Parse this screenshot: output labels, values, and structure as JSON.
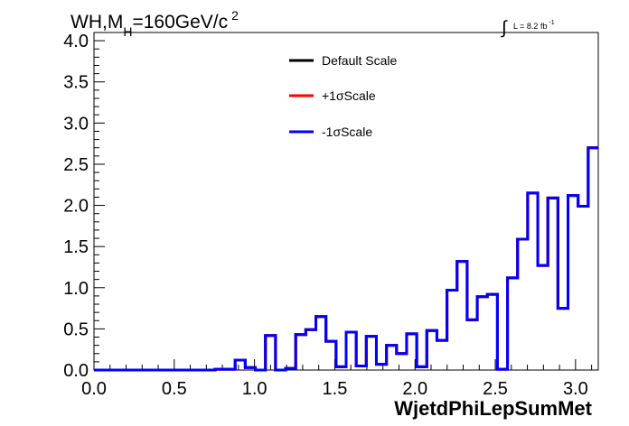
{
  "chart_data": {
    "type": "histogram",
    "title": "WH,M",
    "title_subscript": "H",
    "title_suffix": "=160GeV/c",
    "title_superscript": "2",
    "lumi_label": "L = 8.2 fb",
    "lumi_exponent": "-1",
    "xlabel": "WjetdPhiLepSumMet",
    "ylabel": "",
    "xlim": [
      0,
      3.1416
    ],
    "ylim": [
      0,
      4.1
    ],
    "x_ticks": [
      "0.0",
      "0.5",
      "1.0",
      "1.5",
      "2.0",
      "2.5",
      "3.0"
    ],
    "x_tick_values": [
      0,
      0.5,
      1.0,
      1.5,
      2.0,
      2.5,
      3.0
    ],
    "y_ticks": [
      "0.0",
      "0.5",
      "1.0",
      "1.5",
      "2.0",
      "2.5",
      "3.0",
      "3.5",
      "4.0"
    ],
    "y_tick_values": [
      0,
      0.5,
      1.0,
      1.5,
      2.0,
      2.5,
      3.0,
      3.5,
      4.0
    ],
    "grid": false,
    "legend_position": "top-center",
    "bin_edges": [
      0,
      0.0628,
      0.1257,
      0.1885,
      0.2513,
      0.3142,
      0.377,
      0.4398,
      0.5027,
      0.5655,
      0.6283,
      0.6912,
      0.754,
      0.8168,
      0.8796,
      0.9425,
      1.0053,
      1.0681,
      1.131,
      1.1938,
      1.2566,
      1.3195,
      1.3823,
      1.4451,
      1.508,
      1.5708,
      1.6336,
      1.6965,
      1.7593,
      1.8221,
      1.885,
      1.9478,
      2.0106,
      2.0735,
      2.1363,
      2.1991,
      2.2619,
      2.3248,
      2.3876,
      2.4504,
      2.5133,
      2.5761,
      2.6389,
      2.7018,
      2.7646,
      2.8274,
      2.8903,
      2.9531,
      3.0159,
      3.0788,
      3.1416
    ],
    "series": [
      {
        "name": "Default Scale",
        "color": "#000000",
        "values": [
          0,
          0,
          0,
          0,
          0,
          0,
          0,
          0,
          0,
          0,
          0,
          0,
          0.01,
          0.01,
          0.12,
          0.03,
          0,
          0.42,
          0,
          0.02,
          0.43,
          0.49,
          0.65,
          0.35,
          0.04,
          0.46,
          0.05,
          0.41,
          0.07,
          0.3,
          0.2,
          0.44,
          0.04,
          0.48,
          0.36,
          0.97,
          1.32,
          0.61,
          0.89,
          0.92,
          0.01,
          1.12,
          1.59,
          2.15,
          1.27,
          2.09,
          0.75,
          2.12,
          1.99,
          2.7
        ]
      },
      {
        "name": "+1σScale",
        "color": "#ff0000",
        "values": [
          0,
          0,
          0,
          0,
          0,
          0,
          0,
          0,
          0,
          0,
          0,
          0,
          0.01,
          0.01,
          0.12,
          0.03,
          0,
          0.42,
          0,
          0.02,
          0.43,
          0.49,
          0.65,
          0.35,
          0.04,
          0.46,
          0.05,
          0.41,
          0.07,
          0.3,
          0.2,
          0.44,
          0.04,
          0.48,
          0.36,
          0.97,
          1.32,
          0.61,
          0.89,
          0.92,
          0.01,
          1.12,
          1.59,
          2.15,
          1.27,
          2.09,
          0.75,
          2.12,
          1.99,
          2.7
        ]
      },
      {
        "name": "-1σScale",
        "color": "#0000ff",
        "values": [
          0,
          0,
          0,
          0,
          0,
          0,
          0,
          0,
          0,
          0,
          0,
          0,
          0.01,
          0.01,
          0.12,
          0.03,
          0,
          0.42,
          0,
          0.02,
          0.43,
          0.49,
          0.65,
          0.35,
          0.04,
          0.46,
          0.05,
          0.41,
          0.07,
          0.3,
          0.2,
          0.44,
          0.04,
          0.48,
          0.36,
          0.97,
          1.32,
          0.61,
          0.89,
          0.92,
          0.01,
          1.12,
          1.59,
          2.15,
          1.27,
          2.09,
          0.75,
          2.12,
          1.99,
          2.7
        ]
      }
    ]
  }
}
